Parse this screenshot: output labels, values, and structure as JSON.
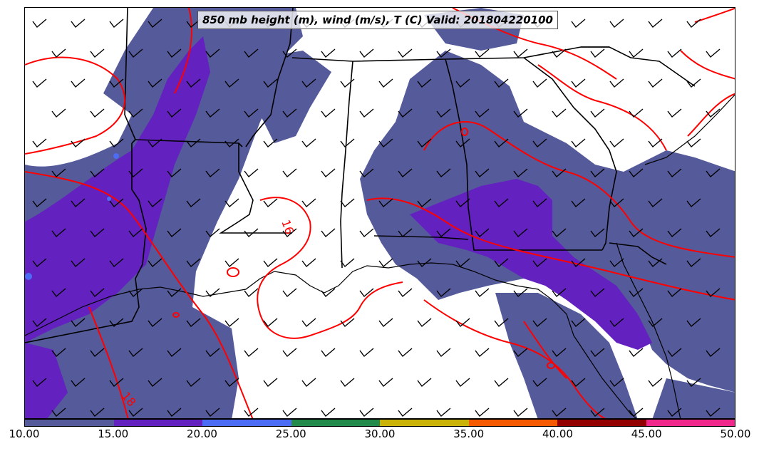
{
  "title": "850 mb height (m), wind (m/s), T (C) Valid: 201804220100",
  "contour_labels": [
    {
      "text": "16",
      "color": "#ff0000"
    },
    {
      "text": "18",
      "color": "#ff0000"
    }
  ],
  "colorbar": {
    "colors": [
      "#555a9b",
      "#6321c0",
      "#4d6cf5",
      "#228b4c",
      "#c9b308",
      "#f55a00",
      "#930000",
      "#f0288c"
    ],
    "ticks": [
      "10.00",
      "15.00",
      "20.00",
      "25.00",
      "30.00",
      "35.00",
      "40.00",
      "45.00",
      "50.00"
    ]
  },
  "legend_colors": {
    "temperature_contour": "#ff0000",
    "boundaries": "#000000",
    "wind_barbs": "#000000"
  }
}
